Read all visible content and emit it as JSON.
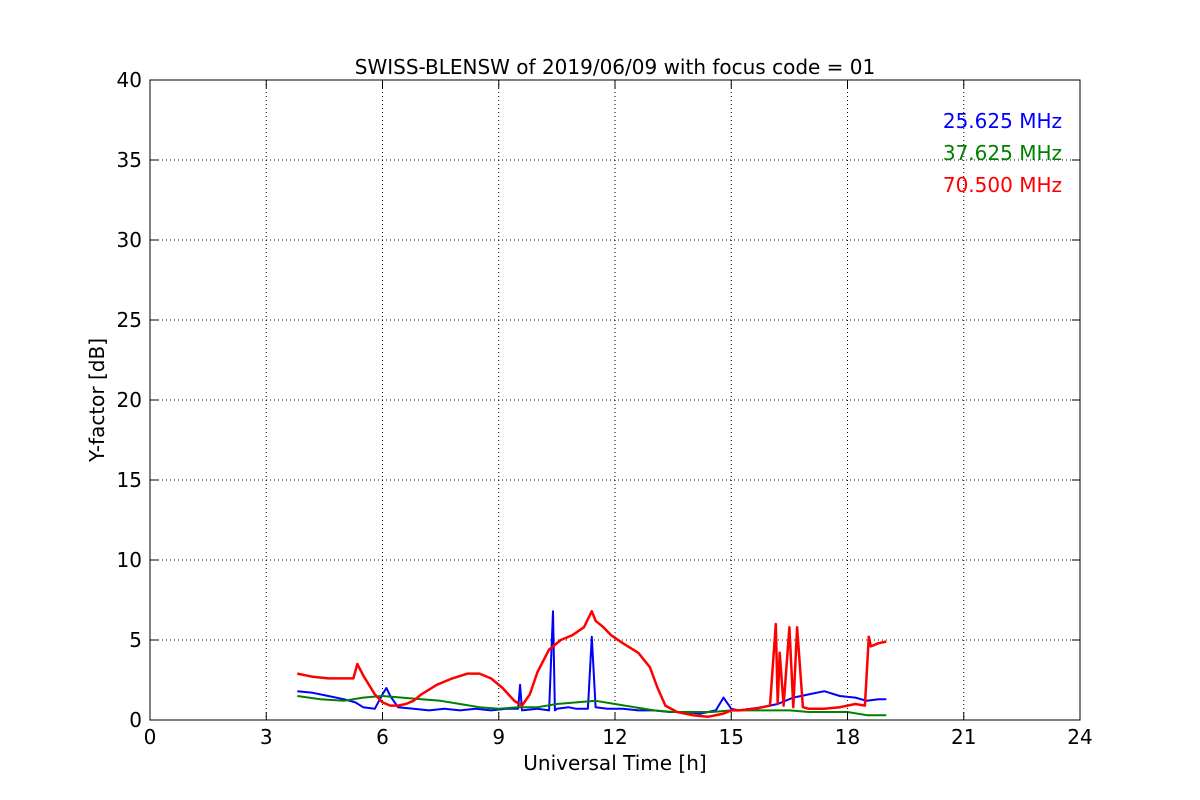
{
  "chart_data": {
    "type": "line",
    "title": "SWISS-BLENSW of 2019/06/09 with focus code = 01",
    "xlabel": "Universal Time [h]",
    "ylabel": "Y-factor [dB]",
    "xlim": [
      0,
      24
    ],
    "ylim": [
      0,
      40
    ],
    "xticks": [
      0,
      3,
      6,
      9,
      12,
      15,
      18,
      21,
      24
    ],
    "yticks": [
      0,
      5,
      10,
      15,
      20,
      25,
      30,
      35,
      40
    ],
    "xtick_labels": [
      "0",
      "3",
      "6",
      "9",
      "12",
      "15",
      "18",
      "21",
      "24"
    ],
    "ytick_labels": [
      "0",
      "5",
      "10",
      "15",
      "20",
      "25",
      "30",
      "35",
      "40"
    ],
    "grid": true,
    "legend_position": "top-right",
    "series": [
      {
        "name": "25.625 MHz",
        "color": "#0000ff",
        "x": [
          3.8,
          4.2,
          4.6,
          5.0,
          5.3,
          5.5,
          5.8,
          6.0,
          6.1,
          6.2,
          6.4,
          6.8,
          7.2,
          7.6,
          8.0,
          8.4,
          8.8,
          9.2,
          9.5,
          9.55,
          9.6,
          10.0,
          10.3,
          10.4,
          10.45,
          10.5,
          10.8,
          11.0,
          11.3,
          11.4,
          11.5,
          11.8,
          12.2,
          12.6,
          13.0,
          13.4,
          13.8,
          14.2,
          14.6,
          14.8,
          15.0,
          15.2,
          15.5,
          15.8,
          16.2,
          16.6,
          17.0,
          17.4,
          17.8,
          18.2,
          18.5,
          18.8,
          19.0
        ],
        "y": [
          1.8,
          1.7,
          1.5,
          1.3,
          1.1,
          0.8,
          0.7,
          1.6,
          2.0,
          1.5,
          0.8,
          0.7,
          0.6,
          0.7,
          0.6,
          0.7,
          0.6,
          0.7,
          0.7,
          2.2,
          0.6,
          0.7,
          0.6,
          6.8,
          0.6,
          0.7,
          0.8,
          0.7,
          0.7,
          5.2,
          0.8,
          0.7,
          0.7,
          0.6,
          0.6,
          0.5,
          0.5,
          0.4,
          0.6,
          1.4,
          0.7,
          0.6,
          0.7,
          0.8,
          1.0,
          1.4,
          1.6,
          1.8,
          1.5,
          1.4,
          1.2,
          1.3,
          1.3
        ]
      },
      {
        "name": "37.625 MHz",
        "color": "#008000",
        "x": [
          3.8,
          4.4,
          5.0,
          5.5,
          6.0,
          6.5,
          7.0,
          7.5,
          8.0,
          8.5,
          9.0,
          9.5,
          10.0,
          10.5,
          11.0,
          11.5,
          12.0,
          12.5,
          13.0,
          13.5,
          14.0,
          14.5,
          15.0,
          15.5,
          16.0,
          16.5,
          17.0,
          17.5,
          18.0,
          18.5,
          19.0
        ],
        "y": [
          1.5,
          1.3,
          1.2,
          1.4,
          1.5,
          1.4,
          1.3,
          1.2,
          1.0,
          0.8,
          0.7,
          0.8,
          0.8,
          1.0,
          1.1,
          1.2,
          1.0,
          0.8,
          0.6,
          0.5,
          0.5,
          0.5,
          0.6,
          0.6,
          0.6,
          0.6,
          0.5,
          0.5,
          0.5,
          0.3,
          0.3
        ]
      },
      {
        "name": "70.500 MHz",
        "color": "#ff0000",
        "x": [
          3.8,
          4.2,
          4.6,
          5.0,
          5.25,
          5.35,
          5.5,
          5.8,
          6.0,
          6.2,
          6.4,
          6.6,
          6.8,
          7.0,
          7.4,
          7.8,
          8.2,
          8.5,
          8.8,
          9.1,
          9.4,
          9.6,
          9.8,
          10.0,
          10.3,
          10.6,
          10.9,
          11.2,
          11.4,
          11.5,
          11.7,
          11.9,
          12.2,
          12.6,
          12.9,
          13.1,
          13.3,
          13.6,
          14.0,
          14.4,
          14.8,
          15.0,
          15.2,
          15.6,
          16.0,
          16.15,
          16.2,
          16.25,
          16.35,
          16.5,
          16.6,
          16.7,
          16.85,
          17.0,
          17.4,
          17.8,
          18.2,
          18.45,
          18.55,
          18.6,
          18.8,
          19.0
        ],
        "y": [
          2.9,
          2.7,
          2.6,
          2.6,
          2.6,
          3.5,
          2.8,
          1.6,
          1.1,
          0.9,
          0.9,
          1.0,
          1.2,
          1.6,
          2.2,
          2.6,
          2.9,
          2.9,
          2.6,
          2.0,
          1.2,
          0.9,
          1.6,
          3.0,
          4.4,
          5.0,
          5.3,
          5.8,
          6.8,
          6.2,
          5.8,
          5.3,
          4.8,
          4.2,
          3.3,
          2.0,
          0.9,
          0.5,
          0.3,
          0.2,
          0.4,
          0.6,
          0.6,
          0.7,
          0.9,
          6.0,
          1.0,
          4.2,
          0.9,
          5.8,
          0.8,
          5.8,
          0.8,
          0.7,
          0.7,
          0.8,
          1.0,
          0.9,
          5.2,
          4.6,
          4.8,
          4.9
        ]
      }
    ]
  }
}
